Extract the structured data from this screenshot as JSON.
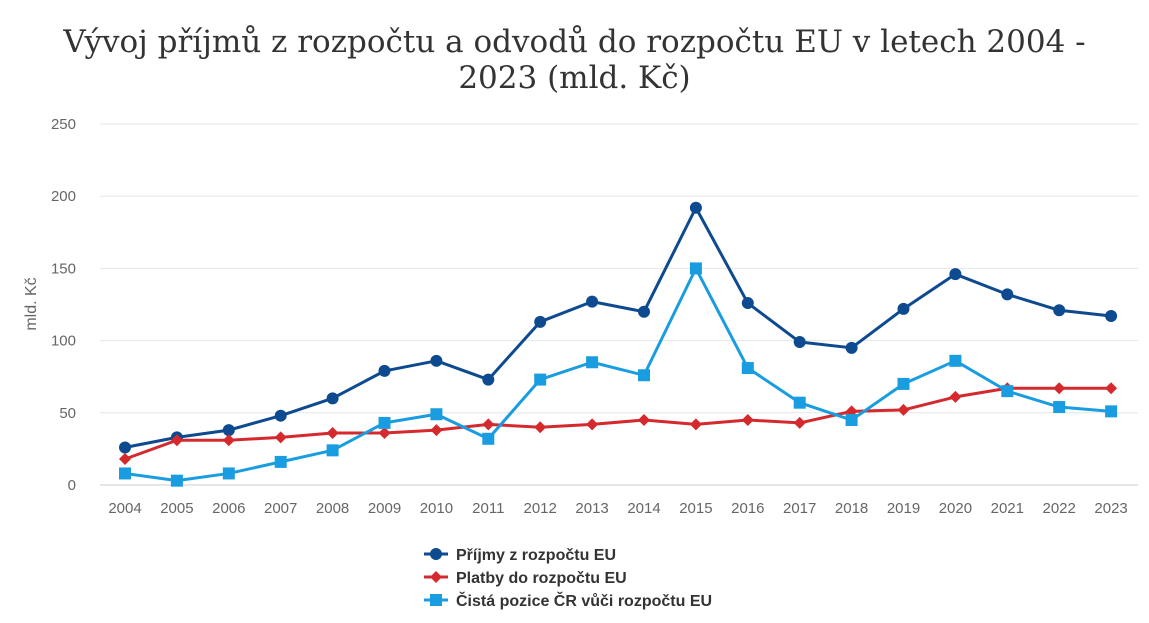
{
  "chart_data": {
    "type": "line",
    "title": "Vývoj příjmů z rozpočtu a odvodů do rozpočtu EU v letech 2004 - 2023 (mld. Kč)",
    "ylabel": "mld. Kč",
    "xlabel": "",
    "ylim": [
      0,
      250
    ],
    "yticks": [
      "0",
      "50",
      "100",
      "150",
      "200",
      "250"
    ],
    "categories": [
      "2004",
      "2005",
      "2006",
      "2007",
      "2008",
      "2009",
      "2010",
      "2011",
      "2012",
      "2013",
      "2014",
      "2015",
      "2016",
      "2017",
      "2018",
      "2019",
      "2020",
      "2021",
      "2022",
      "2023"
    ],
    "grid": true,
    "legend_position": "bottom",
    "series": [
      {
        "name": "Příjmy z rozpočtu EU",
        "color": "#0d4a8f",
        "marker": "circle",
        "values": [
          26,
          33,
          38,
          48,
          60,
          79,
          86,
          73,
          113,
          127,
          120,
          192,
          126,
          99,
          95,
          122,
          146,
          132,
          121,
          117
        ]
      },
      {
        "name": "Platby do rozpočtu EU",
        "color": "#d42a2e",
        "marker": "diamond",
        "values": [
          18,
          31,
          31,
          33,
          36,
          36,
          38,
          42,
          40,
          42,
          45,
          42,
          45,
          43,
          51,
          52,
          61,
          67,
          67,
          67
        ]
      },
      {
        "name": "Čistá pozice ČR vůči rozpočtu EU",
        "color": "#1a9de0",
        "marker": "square",
        "values": [
          8,
          3,
          8,
          16,
          24,
          43,
          49,
          32,
          73,
          85,
          76,
          150,
          81,
          57,
          45,
          70,
          86,
          65,
          54,
          51
        ]
      }
    ]
  }
}
